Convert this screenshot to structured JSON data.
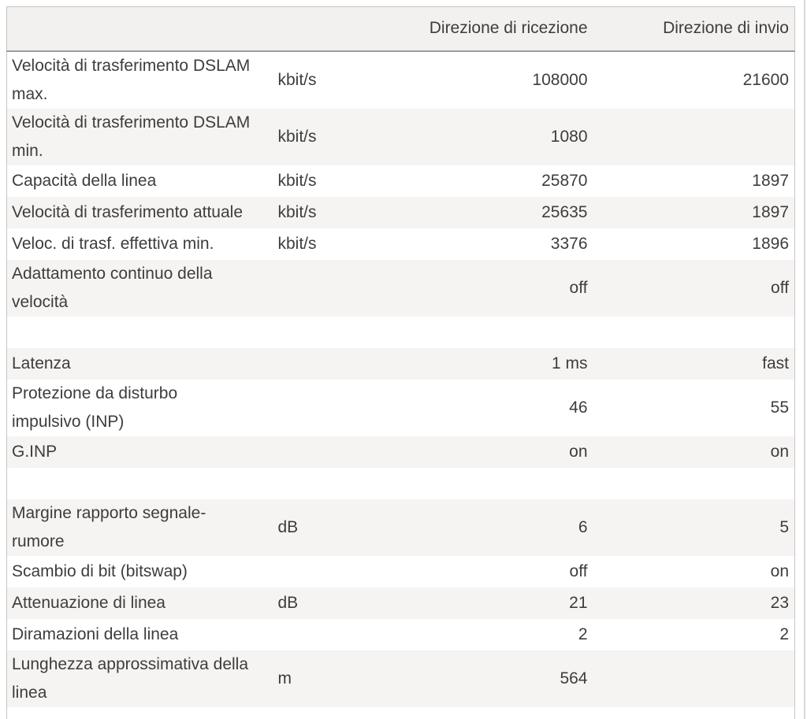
{
  "table": {
    "header": {
      "receive_label": "Direzione di ricezione",
      "send_label": "Direzione di invio"
    },
    "rows": [
      {
        "label": "Velocità di trasferimento DSLAM\nmax.",
        "unit": "kbit/s",
        "recv": "108000",
        "send": "21600"
      },
      {
        "label": "Velocità di trasferimento DSLAM\nmin.",
        "unit": "kbit/s",
        "recv": "1080",
        "send": ""
      },
      {
        "label": "Capacità della linea",
        "unit": "kbit/s",
        "recv": "25870",
        "send": "1897"
      },
      {
        "label": "Velocità di trasferimento attuale",
        "unit": "kbit/s",
        "recv": "25635",
        "send": "1897"
      },
      {
        "label": "Veloc. di trasf. effettiva min.",
        "unit": "kbit/s",
        "recv": "3376",
        "send": "1896"
      },
      {
        "label": "Adattamento continuo della\nvelocità",
        "unit": "",
        "recv": "off",
        "send": "off"
      },
      {
        "separator": true,
        "label": "",
        "unit": "",
        "recv": "",
        "send": ""
      },
      {
        "label": "Latenza",
        "unit": "",
        "recv": "1 ms",
        "send": "fast"
      },
      {
        "label": "Protezione da disturbo\nimpulsivo (INP)",
        "unit": "",
        "recv": "46",
        "send": "55"
      },
      {
        "label": "G.INP",
        "unit": "",
        "recv": "on",
        "send": "on"
      },
      {
        "separator": true,
        "label": "",
        "unit": "",
        "recv": "",
        "send": ""
      },
      {
        "label": "Margine rapporto segnale-\nrumore",
        "unit": "dB",
        "recv": "6",
        "send": "5"
      },
      {
        "label": "Scambio di bit (bitswap)",
        "unit": "",
        "recv": "off",
        "send": "on"
      },
      {
        "label": "Attenuazione di linea",
        "unit": "dB",
        "recv": "21",
        "send": "23"
      },
      {
        "label": "Diramazioni della linea",
        "unit": "",
        "recv": "2",
        "send": "2"
      },
      {
        "label": "Lunghezza approssimativa della\nlinea",
        "unit": "m",
        "recv": "564",
        "send": ""
      },
      {
        "separator": true,
        "label": "",
        "unit": "",
        "recv": "",
        "send": ""
      }
    ],
    "colors": {
      "header_background": "#f2f1ef",
      "stripe_background": "#f5f4f2",
      "row_background": "#ffffff",
      "outer_border": "#c7c6c4",
      "header_border": "#9e9d9b",
      "text": "#3d3d3d",
      "page_right_rule": "#d9d8d6"
    }
  }
}
